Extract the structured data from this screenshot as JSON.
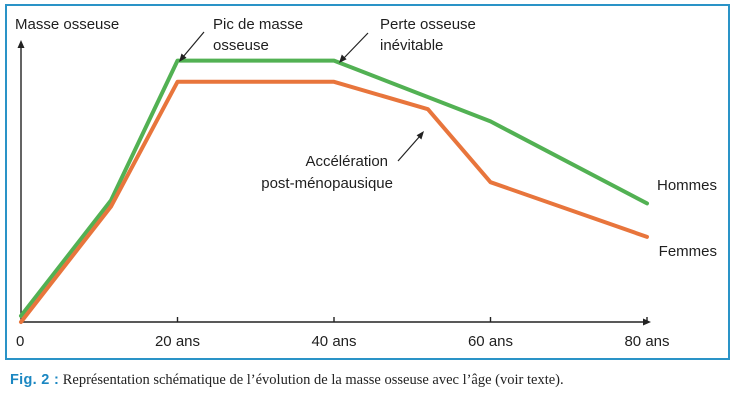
{
  "chart_data": {
    "type": "line",
    "title": "",
    "ylabel": "Masse osseuse",
    "xlabel": "",
    "x_ticks": [
      {
        "value": 0,
        "label": "0"
      },
      {
        "value": 20,
        "label": "20 ans"
      },
      {
        "value": 40,
        "label": "40 ans"
      },
      {
        "value": 60,
        "label": "60 ans"
      },
      {
        "value": 80,
        "label": "80 ans"
      }
    ],
    "xlim": [
      0,
      80
    ],
    "ylim": [
      0,
      100
    ],
    "grid": false,
    "series": [
      {
        "name": "Hommes",
        "color": "#52b153",
        "x": [
          0,
          11.5,
          20,
          40,
          60,
          80
        ],
        "y": [
          2,
          40,
          86,
          86,
          66,
          39
        ]
      },
      {
        "name": "Femmes",
        "color": "#e8753c",
        "x": [
          0,
          11.5,
          20,
          40,
          52,
          60,
          80
        ],
        "y": [
          0,
          38,
          79,
          79,
          70,
          46,
          28
        ]
      }
    ],
    "annotations": [
      {
        "id": "pic",
        "lines": [
          "Pic de masse",
          "osseuse"
        ]
      },
      {
        "id": "perte",
        "lines": [
          "Perte osseuse",
          "inévitable"
        ]
      },
      {
        "id": "accel",
        "lines": [
          "Accélération",
          "post-ménopausique"
        ]
      }
    ]
  },
  "caption": {
    "fig_label": "Fig. 2 :",
    "text": " Représentation schématique de l’évolution de la masse osseuse avec l’âge (voir texte)."
  },
  "colors": {
    "frame": "#2a93c7",
    "axis": "#222222",
    "caption_label": "#1b87c2"
  }
}
